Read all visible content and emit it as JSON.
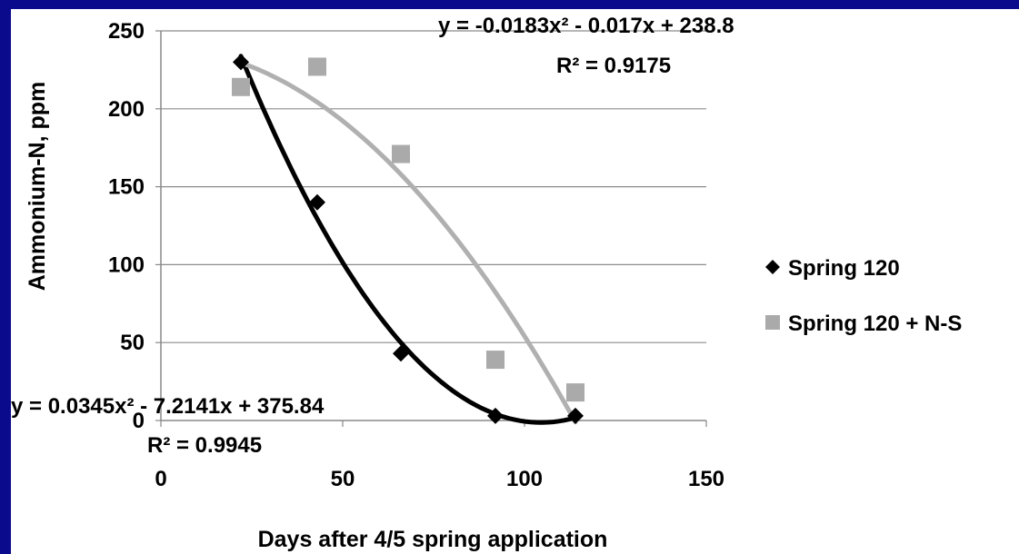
{
  "chart_data": {
    "type": "scatter",
    "xlabel": "Days after 4/5 spring application",
    "ylabel": "Ammonium-N, ppm",
    "xlim": [
      0,
      150
    ],
    "ylim": [
      0,
      250
    ],
    "x_ticks": [
      "0",
      "50",
      "100",
      "150"
    ],
    "y_ticks": [
      "0",
      "50",
      "100",
      "150",
      "200",
      "250"
    ],
    "grid": "horizontal",
    "legend_position": "right",
    "series": [
      {
        "name": "Spring 120",
        "marker": "diamond",
        "color": "#000000",
        "x": [
          22,
          43,
          66,
          92,
          114
        ],
        "y": [
          230,
          140,
          43,
          3,
          3
        ],
        "trendline": {
          "type": "polynomial-2",
          "equation": "y = 0.0345x² - 7.2141x + 375.84",
          "r_squared": "R² = 0.9945",
          "a": 0.0345,
          "b": -7.2141,
          "c": 375.84,
          "x_range": [
            22,
            114
          ]
        }
      },
      {
        "name": "Spring 120 + N-S",
        "marker": "square",
        "color": "#aaaaaa",
        "x": [
          22,
          43,
          66,
          92,
          114
        ],
        "y": [
          214,
          227,
          171,
          39,
          18
        ],
        "trendline": {
          "type": "polynomial-2",
          "equation": "y = -0.0183x² - 0.017x + 238.8",
          "r_squared": "R² = 0.9175",
          "a": -0.0183,
          "b": -0.017,
          "c": 238.8,
          "x_range": [
            22,
            114
          ]
        }
      }
    ]
  }
}
